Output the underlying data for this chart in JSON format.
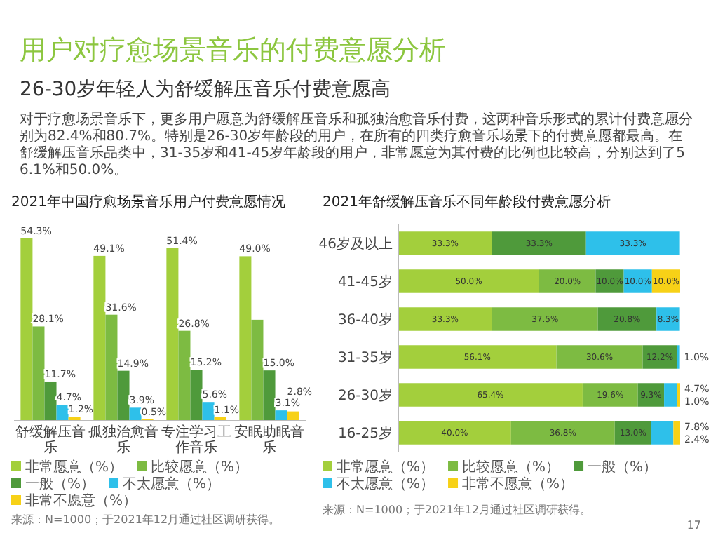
{
  "chart_data": [
    {
      "type": "other",
      "title": "用户对疗愈场景音乐的付费意愿分析",
      "subtitle": "26-30岁年轻人为舒缓解压音乐付费意愿高",
      "annotations": [
        "对于疗愈场景音乐下，更多用户愿意为舒缓解压音乐和孤独治愈音乐付费，这两种音乐形式的累计付费意愿分别为82.4%和80.7%。特别是26-30岁年龄段的用户，在所有的四类疗愈音乐场景下的付费意愿都最高。在舒缓解压音乐品类中，31-35岁和41-45岁年龄段的用户，非常愿意为其付费的比例也比较高，分别达到了56.1%和50.0%。",
        "17"
      ]
    },
    {
      "type": "bar",
      "title": "2021年中国疗愈场景音乐用户付费意愿情况",
      "categories": [
        "舒缓解压音乐",
        "孤独治愈音乐",
        "专注学习工作音乐",
        "安眠助眠音乐"
      ],
      "series": [
        {
          "name": "非常愿意（%）",
          "color": "#a3cf3c",
          "values": [
            54.3,
            49.1,
            51.4,
            49.0
          ],
          "value_labels": [
            "54.3%",
            "49.1%",
            "51.4%",
            "49.0%"
          ]
        },
        {
          "name": "比较愿意（%）",
          "color": "#7dbb42",
          "values": [
            28.1,
            31.6,
            26.8,
            30.1
          ],
          "value_labels": [
            "28.1%",
            "31.6%",
            "26.8%",
            null
          ]
        },
        {
          "name": "一般（%）",
          "color": "#4f9a3b",
          "values": [
            11.7,
            14.9,
            15.2,
            15.0
          ],
          "value_labels": [
            "11.7%",
            "14.9%",
            "15.2%",
            "15.0%"
          ]
        },
        {
          "name": "不太愿意（%）",
          "color": "#2ec0ea",
          "values": [
            4.7,
            3.9,
            5.6,
            3.1
          ],
          "value_labels": [
            "4.7%",
            "3.9%",
            "5.6%",
            "3.1%"
          ]
        },
        {
          "name": "非常不愿意（%）",
          "color": "#f7d117",
          "values": [
            1.2,
            0.5,
            1.1,
            2.8
          ],
          "value_labels": [
            "1.2%",
            "0.5%",
            "1.1%",
            "2.8%"
          ]
        }
      ],
      "legend": "bottom",
      "annotations": [
        "来源：N=1000；于2021年12月通过社区调研获得。"
      ]
    },
    {
      "type": "bar",
      "orientation": "horizontal",
      "stacked": true,
      "title": "2021年舒缓解压音乐不同年龄段付费意愿分析",
      "categories": [
        "46岁及以上",
        "41-45岁",
        "36-40岁",
        "31-35岁",
        "26-30岁",
        "16-25岁"
      ],
      "series": [
        {
          "name": "非常愿意（%）",
          "color": "#a3cf3c",
          "values": [
            33.3,
            50.0,
            33.3,
            56.1,
            65.4,
            40.0
          ],
          "value_labels": [
            "33.3%",
            "50.0%",
            "33.3%",
            "56.1%",
            "65.4%",
            "40.0%"
          ]
        },
        {
          "name": "比较愿意（%）",
          "color": "#7dbb42",
          "values": [
            null,
            20.0,
            37.5,
            30.6,
            19.6,
            36.8
          ],
          "value_labels": [
            null,
            "20.0%",
            "37.5%",
            "30.6%",
            "19.6%",
            "36.8%"
          ]
        },
        {
          "name": "一般（%）",
          "color": "#4f9a3b",
          "values": [
            33.3,
            10.0,
            20.8,
            12.2,
            9.3,
            13.0
          ],
          "value_labels": [
            "33.3%",
            "10.0%",
            "20.8%",
            "12.2%",
            "9.3%",
            "13.0%"
          ]
        },
        {
          "name": "不太愿意（%）",
          "color": "#2ec0ea",
          "values": [
            33.3,
            10.0,
            8.3,
            1.0,
            4.7,
            7.8
          ],
          "value_labels": [
            "33.3%",
            "10.0%",
            "8.3%",
            "1.0%",
            "4.7%",
            "7.8%"
          ]
        },
        {
          "name": "非常不愿意（%）",
          "color": "#f7d117",
          "values": [
            null,
            10.0,
            null,
            null,
            1.0,
            2.4
          ],
          "value_labels": [
            null,
            "10.0%",
            null,
            null,
            "1.0%",
            "2.4%"
          ]
        }
      ],
      "legend": "bottom",
      "annotations": [
        "来源：N=1000；于2021年12月通过社区调研获得。"
      ]
    }
  ]
}
